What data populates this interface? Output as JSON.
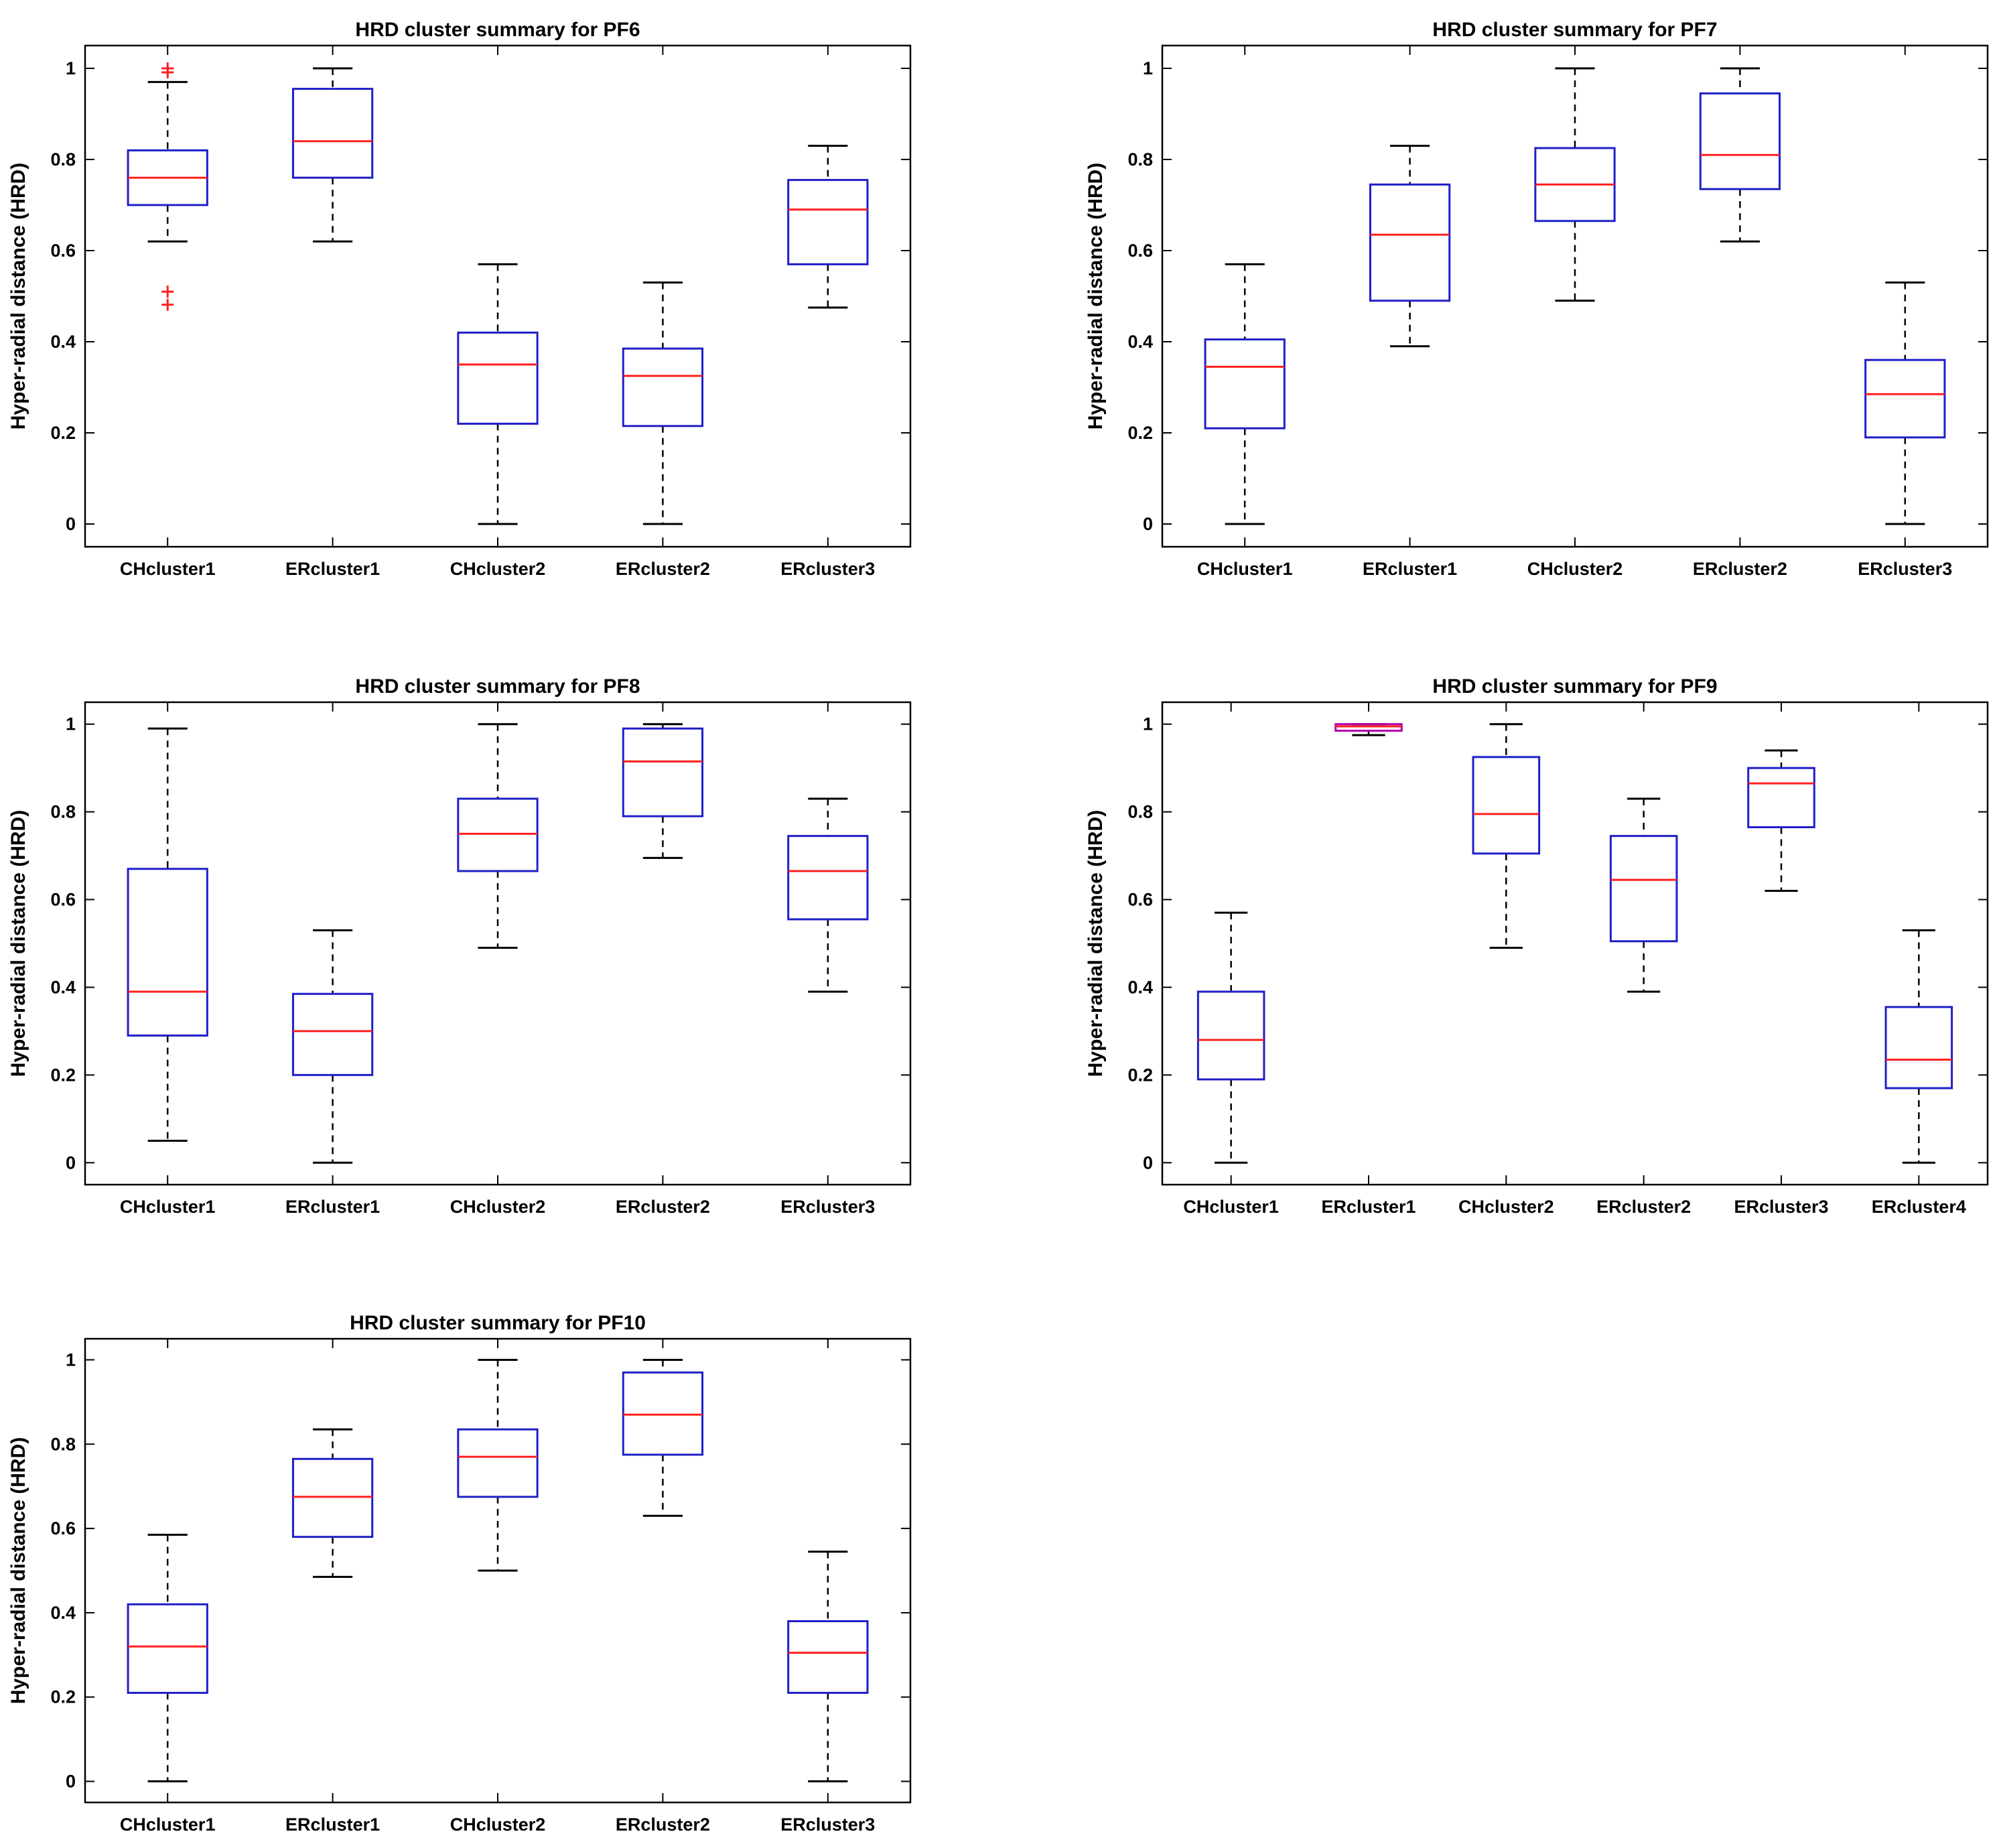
{
  "figure": {
    "ylabel": "Hyper-radial distance (HRD)"
  },
  "colors": {
    "box": "#1f1fc8",
    "median": "#ff1f1f",
    "whisker": "#000000",
    "outlier": "#ff1f1f",
    "axis": "#000000",
    "highlight_box": "#b000b0"
  },
  "chart_data": [
    {
      "type": "box",
      "title": "HRD cluster summary for PF6",
      "xlabel": "",
      "ylabel": "Hyper-radial distance (HRD)",
      "ylim": [
        -0.05,
        1.05
      ],
      "yticks": [
        0,
        0.2,
        0.4,
        0.6,
        0.8,
        1
      ],
      "yticklabels": [
        "0",
        "0.2",
        "0.4",
        "0.6",
        "0.8",
        "1"
      ],
      "categories": [
        "CHcluster1",
        "ERcluster1",
        "CHcluster2",
        "ERcluster2",
        "ERcluster3"
      ],
      "boxes": [
        {
          "min": 0.62,
          "q1": 0.7,
          "median": 0.76,
          "q3": 0.82,
          "max": 0.97,
          "outliers": [
            1.0,
            1.0,
            0.51,
            0.49
          ]
        },
        {
          "min": 0.62,
          "q1": 0.76,
          "median": 0.84,
          "q3": 0.955,
          "max": 1.0,
          "outliers": []
        },
        {
          "min": 0.0,
          "q1": 0.22,
          "median": 0.35,
          "q3": 0.42,
          "max": 0.57,
          "outliers": []
        },
        {
          "min": 0.0,
          "q1": 0.215,
          "median": 0.325,
          "q3": 0.385,
          "max": 0.53,
          "outliers": []
        },
        {
          "min": 0.475,
          "q1": 0.57,
          "median": 0.69,
          "q3": 0.755,
          "max": 0.83,
          "outliers": []
        }
      ]
    },
    {
      "type": "box",
      "title": "HRD cluster summary for PF7",
      "xlabel": "",
      "ylabel": "Hyper-radial distance (HRD)",
      "ylim": [
        -0.05,
        1.05
      ],
      "yticks": [
        0,
        0.2,
        0.4,
        0.6,
        0.8,
        1
      ],
      "yticklabels": [
        "0",
        "0.2",
        "0.4",
        "0.6",
        "0.8",
        "1"
      ],
      "categories": [
        "CHcluster1",
        "ERcluster1",
        "CHcluster2",
        "ERcluster2",
        "ERcluster3"
      ],
      "boxes": [
        {
          "min": 0.0,
          "q1": 0.21,
          "median": 0.345,
          "q3": 0.405,
          "max": 0.57,
          "outliers": []
        },
        {
          "min": 0.39,
          "q1": 0.49,
          "median": 0.635,
          "q3": 0.745,
          "max": 0.83,
          "outliers": []
        },
        {
          "min": 0.49,
          "q1": 0.665,
          "median": 0.745,
          "q3": 0.825,
          "max": 1.0,
          "outliers": []
        },
        {
          "min": 0.62,
          "q1": 0.735,
          "median": 0.81,
          "q3": 0.945,
          "max": 1.0,
          "outliers": []
        },
        {
          "min": 0.0,
          "q1": 0.19,
          "median": 0.285,
          "q3": 0.36,
          "max": 0.53,
          "outliers": []
        }
      ]
    },
    {
      "type": "box",
      "title": "HRD cluster summary for PF8",
      "xlabel": "",
      "ylabel": "Hyper-radial distance (HRD)",
      "ylim": [
        -0.05,
        1.05
      ],
      "yticks": [
        0,
        0.2,
        0.4,
        0.6,
        0.8,
        1
      ],
      "yticklabels": [
        "0",
        "0.2",
        "0.4",
        "0.6",
        "0.8",
        "1"
      ],
      "categories": [
        "CHcluster1",
        "ERcluster1",
        "CHcluster2",
        "ERcluster2",
        "ERcluster3"
      ],
      "boxes": [
        {
          "min": 0.05,
          "q1": 0.29,
          "median": 0.39,
          "q3": 0.67,
          "max": 0.99,
          "outliers": []
        },
        {
          "min": 0.0,
          "q1": 0.2,
          "median": 0.3,
          "q3": 0.385,
          "max": 0.53,
          "outliers": []
        },
        {
          "min": 0.49,
          "q1": 0.665,
          "median": 0.75,
          "q3": 0.83,
          "max": 1.0,
          "outliers": []
        },
        {
          "min": 0.695,
          "q1": 0.79,
          "median": 0.915,
          "q3": 0.99,
          "max": 1.0,
          "outliers": []
        },
        {
          "min": 0.39,
          "q1": 0.555,
          "median": 0.665,
          "q3": 0.745,
          "max": 0.83,
          "outliers": []
        }
      ]
    },
    {
      "type": "box",
      "title": "HRD cluster summary for PF9",
      "xlabel": "",
      "ylabel": "Hyper-radial distance (HRD)",
      "ylim": [
        -0.05,
        1.05
      ],
      "yticks": [
        0,
        0.2,
        0.4,
        0.6,
        0.8,
        1
      ],
      "yticklabels": [
        "0",
        "0.2",
        "0.4",
        "0.6",
        "0.8",
        "1"
      ],
      "categories": [
        "CHcluster1",
        "ERcluster1",
        "CHcluster2",
        "ERcluster2",
        "ERcluster3",
        "ERcluster4"
      ],
      "boxes": [
        {
          "min": 0.0,
          "q1": 0.19,
          "median": 0.28,
          "q3": 0.39,
          "max": 0.57,
          "outliers": []
        },
        {
          "min": 0.975,
          "q1": 0.985,
          "median": 0.995,
          "q3": 1.0,
          "max": 1.0,
          "outliers": []
        },
        {
          "min": 0.49,
          "q1": 0.705,
          "median": 0.795,
          "q3": 0.925,
          "max": 1.0,
          "outliers": []
        },
        {
          "min": 0.39,
          "q1": 0.505,
          "median": 0.645,
          "q3": 0.745,
          "max": 0.83,
          "outliers": []
        },
        {
          "min": 0.62,
          "q1": 0.765,
          "median": 0.865,
          "q3": 0.9,
          "max": 0.94,
          "outliers": []
        },
        {
          "min": 0.0,
          "q1": 0.17,
          "median": 0.235,
          "q3": 0.355,
          "max": 0.53,
          "outliers": []
        }
      ]
    },
    {
      "type": "box",
      "title": "HRD cluster summary for PF10",
      "xlabel": "",
      "ylabel": "Hyper-radial distance (HRD)",
      "ylim": [
        -0.05,
        1.05
      ],
      "yticks": [
        0,
        0.2,
        0.4,
        0.6,
        0.8,
        1
      ],
      "yticklabels": [
        "0",
        "0.2",
        "0.4",
        "0.6",
        "0.8",
        "1"
      ],
      "categories": [
        "CHcluster1",
        "ERcluster1",
        "CHcluster2",
        "ERcluster2",
        "ERcluster3"
      ],
      "boxes": [
        {
          "min": 0.0,
          "q1": 0.21,
          "median": 0.32,
          "q3": 0.42,
          "max": 0.585,
          "outliers": []
        },
        {
          "min": 0.485,
          "q1": 0.58,
          "median": 0.675,
          "q3": 0.765,
          "max": 0.835,
          "outliers": []
        },
        {
          "min": 0.5,
          "q1": 0.675,
          "median": 0.77,
          "q3": 0.835,
          "max": 1.0,
          "outliers": []
        },
        {
          "min": 0.63,
          "q1": 0.775,
          "median": 0.87,
          "q3": 0.97,
          "max": 1.0,
          "outliers": []
        },
        {
          "min": 0.0,
          "q1": 0.21,
          "median": 0.305,
          "q3": 0.38,
          "max": 0.545,
          "outliers": []
        }
      ]
    }
  ]
}
